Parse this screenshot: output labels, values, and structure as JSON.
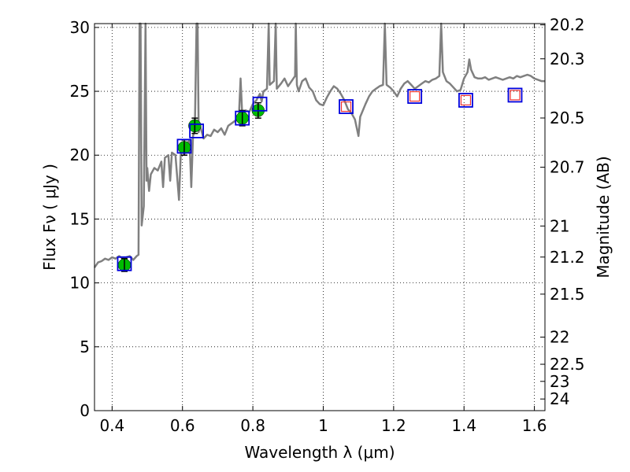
{
  "chart_data": {
    "type": "scatter",
    "title": "",
    "xlabel": "Wavelength  λ (μm)",
    "ylabel": "Flux  Fν  ( μJy )",
    "y2label": "Magnitude (AB)",
    "xlim": [
      0.35,
      1.63
    ],
    "ylim": [
      0,
      30.3
    ],
    "grid": true,
    "xticks": [
      {
        "value": 0.4,
        "label": "0.4"
      },
      {
        "value": 0.6,
        "label": "0.6"
      },
      {
        "value": 0.8,
        "label": "0.8"
      },
      {
        "value": 1.0,
        "label": "1"
      },
      {
        "value": 1.2,
        "label": "1.2"
      },
      {
        "value": 1.4,
        "label": "1.4"
      },
      {
        "value": 1.6,
        "label": "1.6"
      }
    ],
    "yticks": [
      {
        "value": 0,
        "label": "0"
      },
      {
        "value": 5,
        "label": "5"
      },
      {
        "value": 10,
        "label": "10"
      },
      {
        "value": 15,
        "label": "15"
      },
      {
        "value": 20,
        "label": "20"
      },
      {
        "value": 25,
        "label": "25"
      },
      {
        "value": 30,
        "label": "30"
      }
    ],
    "mag_ticks": [
      {
        "mag": 20.2,
        "label": "20.2"
      },
      {
        "mag": 20.3,
        "label": "20.3"
      },
      {
        "mag": 20.5,
        "label": "20.5"
      },
      {
        "mag": 20.7,
        "label": "20.7"
      },
      {
        "mag": 21,
        "label": "21"
      },
      {
        "mag": 21.2,
        "label": "21.2"
      },
      {
        "mag": 21.5,
        "label": "21.5"
      },
      {
        "mag": 22,
        "label": "22"
      },
      {
        "mag": 22.5,
        "label": "22.5"
      },
      {
        "mag": 23,
        "label": "23"
      },
      {
        "mag": 24,
        "label": "24"
      }
    ],
    "model_spectrum": {
      "color": "#808080",
      "points": [
        [
          0.35,
          11.2
        ],
        [
          0.36,
          11.6
        ],
        [
          0.37,
          11.7
        ],
        [
          0.38,
          11.9
        ],
        [
          0.39,
          11.8
        ],
        [
          0.4,
          12.0
        ],
        [
          0.41,
          11.9
        ],
        [
          0.42,
          12.1
        ],
        [
          0.43,
          11.9
        ],
        [
          0.44,
          12.0
        ],
        [
          0.45,
          12.1
        ],
        [
          0.46,
          11.8
        ],
        [
          0.47,
          12.1
        ],
        [
          0.475,
          12.2
        ],
        [
          0.478,
          30.3
        ],
        [
          0.481,
          30.3
        ],
        [
          0.484,
          14.5
        ],
        [
          0.49,
          16.0
        ],
        [
          0.495,
          30.3
        ],
        [
          0.498,
          18.0
        ],
        [
          0.5,
          19.0
        ],
        [
          0.505,
          17.2
        ],
        [
          0.51,
          18.5
        ],
        [
          0.52,
          19.0
        ],
        [
          0.53,
          18.8
        ],
        [
          0.54,
          19.5
        ],
        [
          0.545,
          17.5
        ],
        [
          0.55,
          19.8
        ],
        [
          0.56,
          20.0
        ],
        [
          0.565,
          18.0
        ],
        [
          0.57,
          20.2
        ],
        [
          0.58,
          20.0
        ],
        [
          0.59,
          16.5
        ],
        [
          0.595,
          20.0
        ],
        [
          0.6,
          20.6
        ],
        [
          0.61,
          20.8
        ],
        [
          0.62,
          21.2
        ],
        [
          0.625,
          17.5
        ],
        [
          0.63,
          21.5
        ],
        [
          0.635,
          22.0
        ],
        [
          0.64,
          30.3
        ],
        [
          0.643,
          30.3
        ],
        [
          0.646,
          21.8
        ],
        [
          0.65,
          22.3
        ],
        [
          0.66,
          21.3
        ],
        [
          0.67,
          21.6
        ],
        [
          0.68,
          21.5
        ],
        [
          0.69,
          22.0
        ],
        [
          0.7,
          21.8
        ],
        [
          0.71,
          22.1
        ],
        [
          0.72,
          21.6
        ],
        [
          0.73,
          22.3
        ],
        [
          0.74,
          22.5
        ],
        [
          0.75,
          22.7
        ],
        [
          0.76,
          22.8
        ],
        [
          0.765,
          26.0
        ],
        [
          0.77,
          23.0
        ],
        [
          0.78,
          23.5
        ],
        [
          0.79,
          23.4
        ],
        [
          0.8,
          24.0
        ],
        [
          0.81,
          24.3
        ],
        [
          0.82,
          24.8
        ],
        [
          0.825,
          24.2
        ],
        [
          0.83,
          25.0
        ],
        [
          0.84,
          25.2
        ],
        [
          0.845,
          30.3
        ],
        [
          0.848,
          25.5
        ],
        [
          0.86,
          25.8
        ],
        [
          0.865,
          30.3
        ],
        [
          0.868,
          25.2
        ],
        [
          0.88,
          25.6
        ],
        [
          0.89,
          26.0
        ],
        [
          0.9,
          25.4
        ],
        [
          0.91,
          25.8
        ],
        [
          0.92,
          26.2
        ],
        [
          0.922,
          30.3
        ],
        [
          0.925,
          25.5
        ],
        [
          0.93,
          25.0
        ],
        [
          0.94,
          25.8
        ],
        [
          0.95,
          26.0
        ],
        [
          0.96,
          25.3
        ],
        [
          0.97,
          25.0
        ],
        [
          0.98,
          24.3
        ],
        [
          0.99,
          24.0
        ],
        [
          1.0,
          23.9
        ],
        [
          1.01,
          24.5
        ],
        [
          1.02,
          25.0
        ],
        [
          1.03,
          25.4
        ],
        [
          1.04,
          25.2
        ],
        [
          1.05,
          24.8
        ],
        [
          1.06,
          24.3
        ],
        [
          1.07,
          23.6
        ],
        [
          1.08,
          23.3
        ],
        [
          1.09,
          22.8
        ],
        [
          1.1,
          21.5
        ],
        [
          1.105,
          23.0
        ],
        [
          1.12,
          24.0
        ],
        [
          1.13,
          24.6
        ],
        [
          1.14,
          25.0
        ],
        [
          1.15,
          25.2
        ],
        [
          1.16,
          25.4
        ],
        [
          1.17,
          25.5
        ],
        [
          1.175,
          30.3
        ],
        [
          1.18,
          25.5
        ],
        [
          1.19,
          25.3
        ],
        [
          1.2,
          25.0
        ],
        [
          1.21,
          24.6
        ],
        [
          1.22,
          25.2
        ],
        [
          1.23,
          25.6
        ],
        [
          1.24,
          25.8
        ],
        [
          1.25,
          25.5
        ],
        [
          1.26,
          25.2
        ],
        [
          1.27,
          25.4
        ],
        [
          1.28,
          25.6
        ],
        [
          1.29,
          25.8
        ],
        [
          1.3,
          25.7
        ],
        [
          1.31,
          25.9
        ],
        [
          1.32,
          26.0
        ],
        [
          1.33,
          26.2
        ],
        [
          1.335,
          30.3
        ],
        [
          1.34,
          26.5
        ],
        [
          1.35,
          25.8
        ],
        [
          1.36,
          25.6
        ],
        [
          1.37,
          25.3
        ],
        [
          1.38,
          25.0
        ],
        [
          1.39,
          25.1
        ],
        [
          1.4,
          26.0
        ],
        [
          1.41,
          26.5
        ],
        [
          1.415,
          27.5
        ],
        [
          1.42,
          26.7
        ],
        [
          1.43,
          26.1
        ],
        [
          1.44,
          26.0
        ],
        [
          1.45,
          26.0
        ],
        [
          1.46,
          26.1
        ],
        [
          1.47,
          25.9
        ],
        [
          1.48,
          26.0
        ],
        [
          1.49,
          26.1
        ],
        [
          1.5,
          26.0
        ],
        [
          1.51,
          25.9
        ],
        [
          1.52,
          26.0
        ],
        [
          1.53,
          26.1
        ],
        [
          1.54,
          26.0
        ],
        [
          1.55,
          26.2
        ],
        [
          1.56,
          26.1
        ],
        [
          1.57,
          26.2
        ],
        [
          1.58,
          26.3
        ],
        [
          1.59,
          26.2
        ],
        [
          1.6,
          26.0
        ],
        [
          1.61,
          25.9
        ],
        [
          1.62,
          25.8
        ],
        [
          1.63,
          25.8
        ]
      ]
    },
    "observed": {
      "color": "#00bb00",
      "points": [
        {
          "x": 0.435,
          "y": 11.4,
          "err": 0.5
        },
        {
          "x": 0.605,
          "y": 20.6,
          "err": 0.6
        },
        {
          "x": 0.635,
          "y": 22.3,
          "err": 0.6
        },
        {
          "x": 0.77,
          "y": 22.9,
          "err": 0.6
        },
        {
          "x": 0.815,
          "y": 23.5,
          "err": 0.6
        }
      ]
    },
    "model_fluxes": {
      "color": "#0000dd",
      "points": [
        {
          "x": 0.435,
          "y": 11.5
        },
        {
          "x": 0.605,
          "y": 20.7
        },
        {
          "x": 0.64,
          "y": 21.9
        },
        {
          "x": 0.77,
          "y": 22.9
        },
        {
          "x": 0.82,
          "y": 24.0
        },
        {
          "x": 1.065,
          "y": 23.8
        },
        {
          "x": 1.26,
          "y": 24.6
        },
        {
          "x": 1.405,
          "y": 24.3
        },
        {
          "x": 1.545,
          "y": 24.7
        }
      ]
    },
    "upper_limits": {
      "color": "#ee3333",
      "points": [
        {
          "x": 1.065,
          "y": 23.8
        },
        {
          "x": 1.26,
          "y": 24.6
        },
        {
          "x": 1.405,
          "y": 24.3
        },
        {
          "x": 1.545,
          "y": 24.7
        }
      ]
    }
  }
}
